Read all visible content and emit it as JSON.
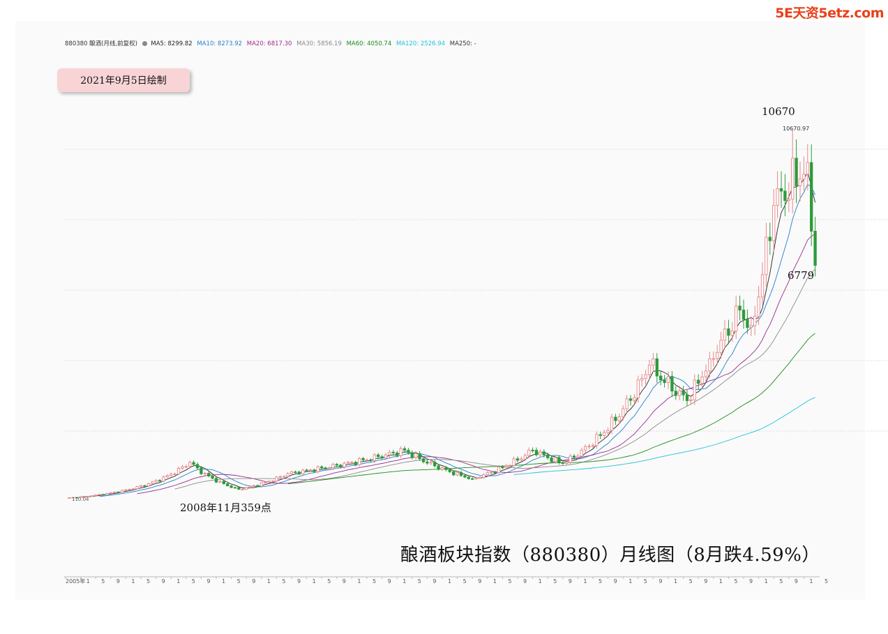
{
  "watermark": "5E天资5etz.com",
  "legend": {
    "title": "880380 酿酒(月线,前复权)",
    "items": [
      {
        "text": "MA5: 8299.82",
        "color": "#222222"
      },
      {
        "text": "MA10: 8273.92",
        "color": "#1f7fd0"
      },
      {
        "text": "MA20: 6817.30",
        "color": "#9b2a8c"
      },
      {
        "text": "MA30: 5856.19",
        "color": "#8a8a8a"
      },
      {
        "text": "MA60: 4050.74",
        "color": "#1a8a1a"
      },
      {
        "text": "MA120: 2526.94",
        "color": "#1fc4d6"
      },
      {
        "text": "MA250: -",
        "color": "#333333"
      }
    ]
  },
  "date_badge": "2021年9月5日绘制",
  "title": "酿酒板块指数（880380）月线图（8月跌4.59%）",
  "annotations": {
    "peak": "10670",
    "peak_label": "10670.97",
    "low_2008": "2008年11月359点",
    "last_close": "6779",
    "start_label": "110.04"
  },
  "chart_data": {
    "type": "candlestick",
    "frequency": "monthly",
    "x_start": "2005-01",
    "x_end": "2021-08",
    "x_tick_labels": [
      "2005年",
      "1",
      "5",
      "9",
      "1",
      "5",
      "9",
      "1",
      "5",
      "9",
      "1",
      "5",
      "9",
      "1",
      "5",
      "9",
      "1",
      "5",
      "9",
      "1",
      "5",
      "9",
      "1",
      "5",
      "9",
      "1",
      "5",
      "9",
      "1",
      "5",
      "9",
      "1",
      "5",
      "9",
      "1",
      "5",
      "9",
      "1",
      "5",
      "9",
      "1",
      "5",
      "9",
      "1",
      "5",
      "9",
      "1",
      "5",
      "9",
      "1",
      "5"
    ],
    "up_color": "#e8878a",
    "down_color": "#2e9a3a",
    "key_points": [
      {
        "x": "2005-01",
        "close": 110.04
      },
      {
        "x": "2007-10",
        "close": 1130
      },
      {
        "x": "2008-11",
        "close": 359
      },
      {
        "x": "2009-12",
        "close": 810
      },
      {
        "x": "2012-07",
        "close": 1480
      },
      {
        "x": "2014-01",
        "close": 660
      },
      {
        "x": "2015-05",
        "close": 1480
      },
      {
        "x": "2016-01",
        "close": 1100
      },
      {
        "x": "2017-12",
        "close": 3920
      },
      {
        "x": "2018-10",
        "close": 2900
      },
      {
        "x": "2019-04",
        "close": 4100
      },
      {
        "x": "2019-12",
        "close": 5500
      },
      {
        "x": "2020-03",
        "close": 5050
      },
      {
        "x": "2020-09",
        "close": 8500
      },
      {
        "x": "2021-02",
        "high": 10670.97
      },
      {
        "x": "2021-06",
        "close": 9730
      },
      {
        "x": "2021-08",
        "close": 6779
      }
    ],
    "moving_averages": [
      {
        "name": "MA5",
        "last": 8299.82
      },
      {
        "name": "MA10",
        "last": 8273.92
      },
      {
        "name": "MA20",
        "last": 6817.3
      },
      {
        "name": "MA30",
        "last": 5856.19
      },
      {
        "name": "MA60",
        "last": 4050.74
      },
      {
        "name": "MA120",
        "last": 2526.94
      },
      {
        "name": "MA250",
        "last": null
      }
    ]
  }
}
